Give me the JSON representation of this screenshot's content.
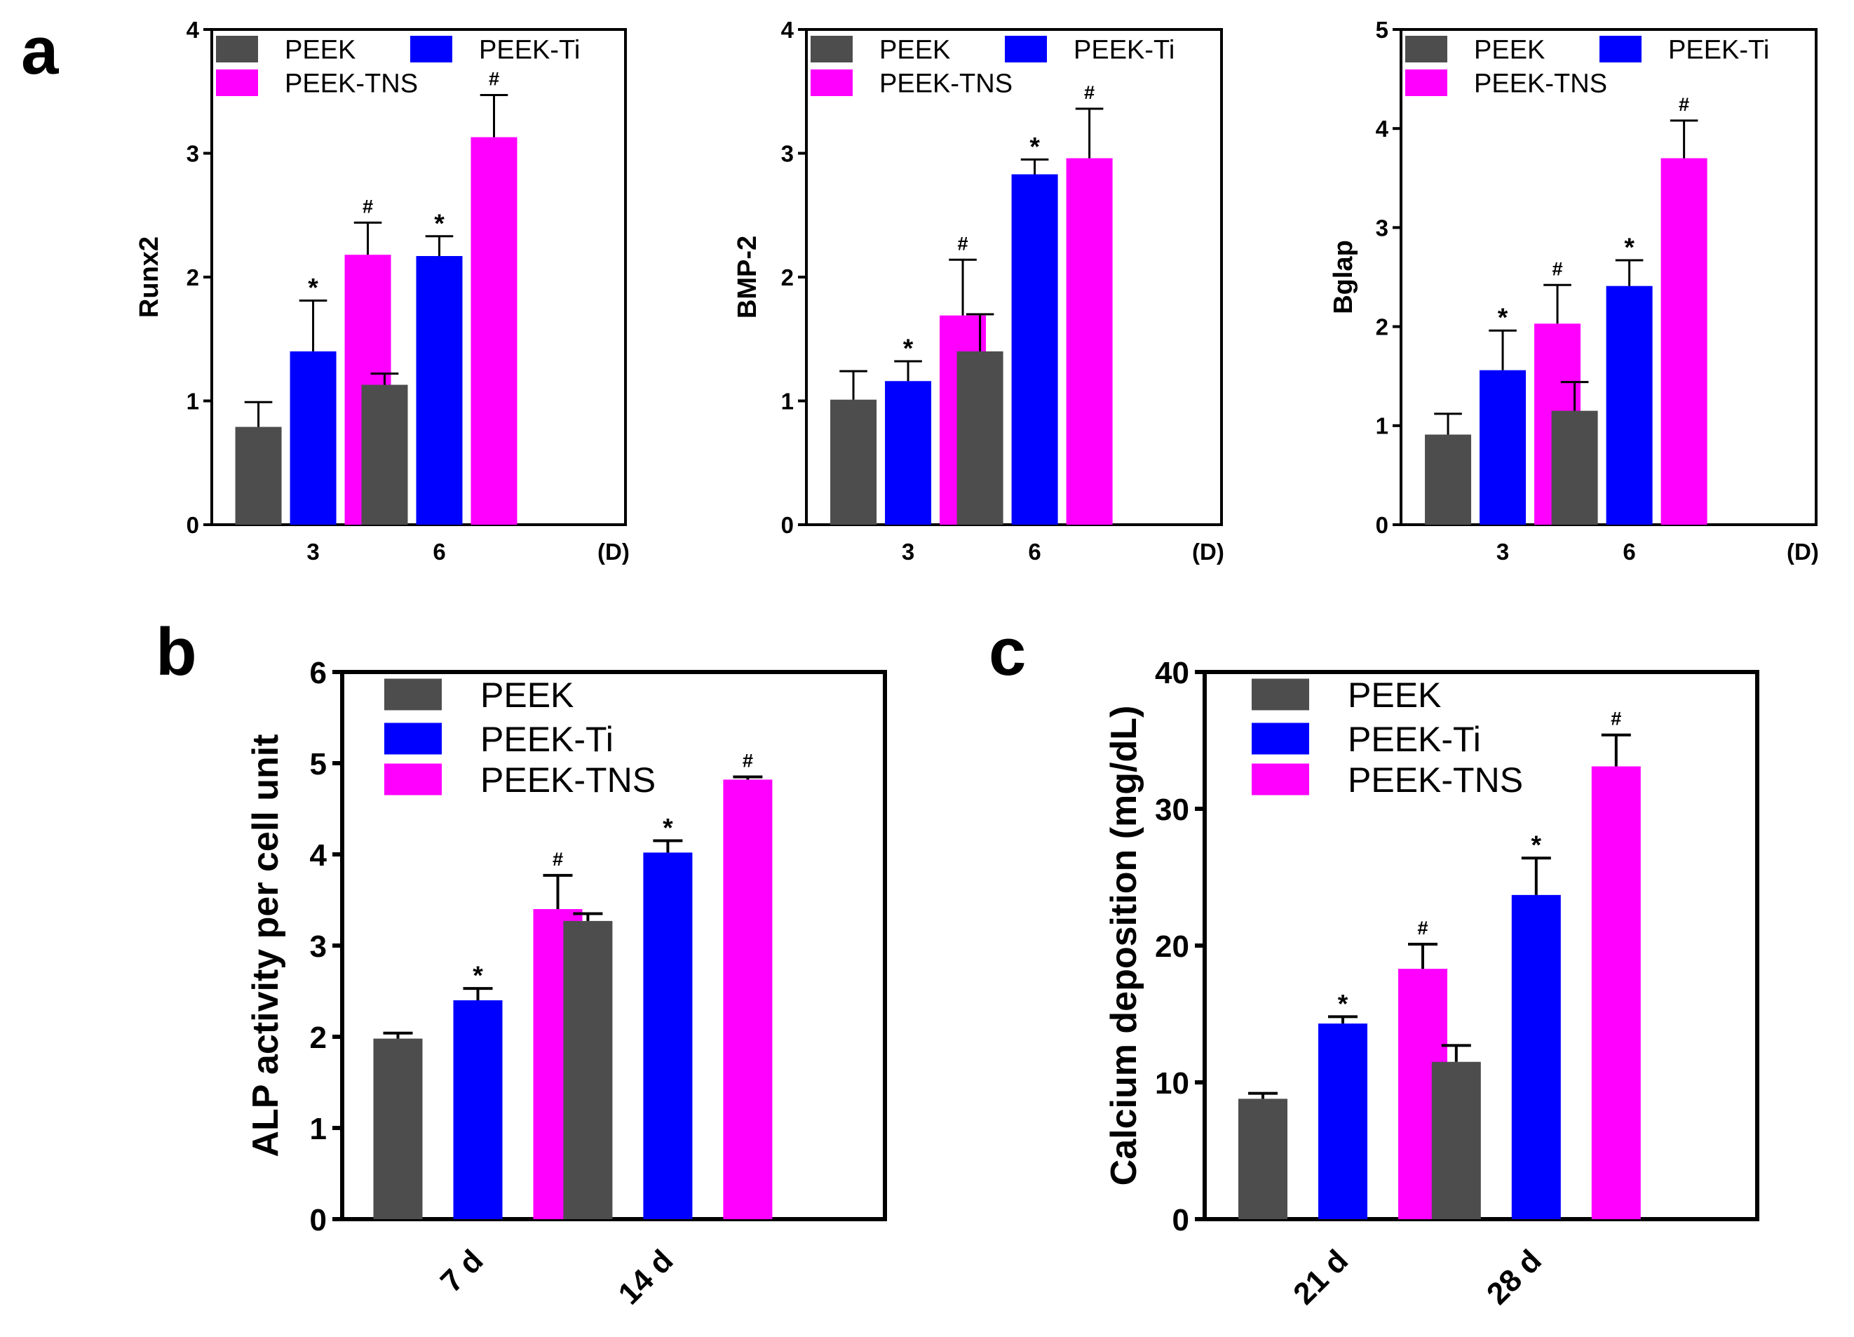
{
  "panel_letters": [
    "a",
    "b",
    "c"
  ],
  "series_colors": {
    "PEEK": "#4d4d4d",
    "PEEK-Ti": "#0000ff",
    "PEEK-TNS": "#ff00ff"
  },
  "chart_data": [
    {
      "id": "a1",
      "type": "bar",
      "ylabel": "Runx2",
      "xunit": "(D)",
      "categories": [
        "3",
        "6"
      ],
      "ylim": [
        0,
        4
      ],
      "yticks": [
        0,
        1,
        2,
        3,
        4
      ],
      "legend": [
        "PEEK",
        "PEEK-Ti",
        "PEEK-TNS"
      ],
      "series": [
        {
          "name": "PEEK",
          "values": [
            0.79,
            1.13
          ],
          "errors": [
            0.2,
            0.09
          ],
          "marks": [
            "",
            ""
          ]
        },
        {
          "name": "PEEK-Ti",
          "values": [
            1.4,
            2.17
          ],
          "errors": [
            0.41,
            0.16
          ],
          "marks": [
            "*",
            "*"
          ]
        },
        {
          "name": "PEEK-TNS",
          "values": [
            2.18,
            3.13
          ],
          "errors": [
            0.26,
            0.34
          ],
          "marks": [
            "#",
            "#"
          ]
        }
      ]
    },
    {
      "id": "a2",
      "type": "bar",
      "ylabel": "BMP-2",
      "xunit": "(D)",
      "categories": [
        "3",
        "6"
      ],
      "ylim": [
        0,
        4
      ],
      "yticks": [
        0,
        1,
        2,
        3,
        4
      ],
      "legend": [
        "PEEK",
        "PEEK-Ti",
        "PEEK-TNS"
      ],
      "series": [
        {
          "name": "PEEK",
          "values": [
            1.01,
            1.4
          ],
          "errors": [
            0.23,
            0.3
          ],
          "marks": [
            "",
            ""
          ]
        },
        {
          "name": "PEEK-Ti",
          "values": [
            1.16,
            2.83
          ],
          "errors": [
            0.16,
            0.12
          ],
          "marks": [
            "*",
            "*"
          ]
        },
        {
          "name": "PEEK-TNS",
          "values": [
            1.69,
            2.96
          ],
          "errors": [
            0.45,
            0.4
          ],
          "marks": [
            "#",
            "#"
          ]
        }
      ]
    },
    {
      "id": "a3",
      "type": "bar",
      "ylabel": "Bglap",
      "xunit": "(D)",
      "categories": [
        "3",
        "6"
      ],
      "ylim": [
        0,
        5
      ],
      "yticks": [
        0,
        1,
        2,
        3,
        4,
        5
      ],
      "legend": [
        "PEEK",
        "PEEK-Ti",
        "PEEK-TNS"
      ],
      "series": [
        {
          "name": "PEEK",
          "values": [
            0.91,
            1.15
          ],
          "errors": [
            0.21,
            0.29
          ],
          "marks": [
            "",
            ""
          ]
        },
        {
          "name": "PEEK-Ti",
          "values": [
            1.56,
            2.41
          ],
          "errors": [
            0.4,
            0.26
          ],
          "marks": [
            "*",
            "*"
          ]
        },
        {
          "name": "PEEK-TNS",
          "values": [
            2.03,
            3.7
          ],
          "errors": [
            0.39,
            0.38
          ],
          "marks": [
            "#",
            "#"
          ]
        }
      ]
    },
    {
      "id": "b",
      "type": "bar",
      "ylabel": "ALP activity per cell unit",
      "xunit": "",
      "categories": [
        "7 d",
        "14 d"
      ],
      "ylim": [
        0,
        6
      ],
      "yticks": [
        0,
        1,
        2,
        3,
        4,
        5,
        6
      ],
      "legend": [
        "PEEK",
        "PEEK-Ti",
        "PEEK-TNS"
      ],
      "series": [
        {
          "name": "PEEK",
          "values": [
            1.98,
            3.27
          ],
          "errors": [
            0.06,
            0.08
          ],
          "marks": [
            "",
            ""
          ]
        },
        {
          "name": "PEEK-Ti",
          "values": [
            2.4,
            4.02
          ],
          "errors": [
            0.13,
            0.13
          ],
          "marks": [
            "*",
            "*"
          ]
        },
        {
          "name": "PEEK-TNS",
          "values": [
            3.4,
            4.82
          ],
          "errors": [
            0.37,
            0.03
          ],
          "marks": [
            "#",
            "#"
          ]
        }
      ]
    },
    {
      "id": "c",
      "type": "bar",
      "ylabel": "Calcium deposition (mg/dL)",
      "xunit": "",
      "categories": [
        "21 d",
        "28 d"
      ],
      "ylim": [
        0,
        40
      ],
      "yticks": [
        0,
        10,
        20,
        30,
        40
      ],
      "legend": [
        "PEEK",
        "PEEK-Ti",
        "PEEK-TNS"
      ],
      "series": [
        {
          "name": "PEEK",
          "values": [
            8.8,
            11.5
          ],
          "errors": [
            0.4,
            1.2
          ],
          "marks": [
            "",
            ""
          ]
        },
        {
          "name": "PEEK-Ti",
          "values": [
            14.3,
            23.7
          ],
          "errors": [
            0.5,
            2.7
          ],
          "marks": [
            "*",
            "*"
          ]
        },
        {
          "name": "PEEK-TNS",
          "values": [
            18.3,
            33.1
          ],
          "errors": [
            1.8,
            2.3
          ],
          "marks": [
            "#",
            "#"
          ]
        }
      ]
    }
  ]
}
